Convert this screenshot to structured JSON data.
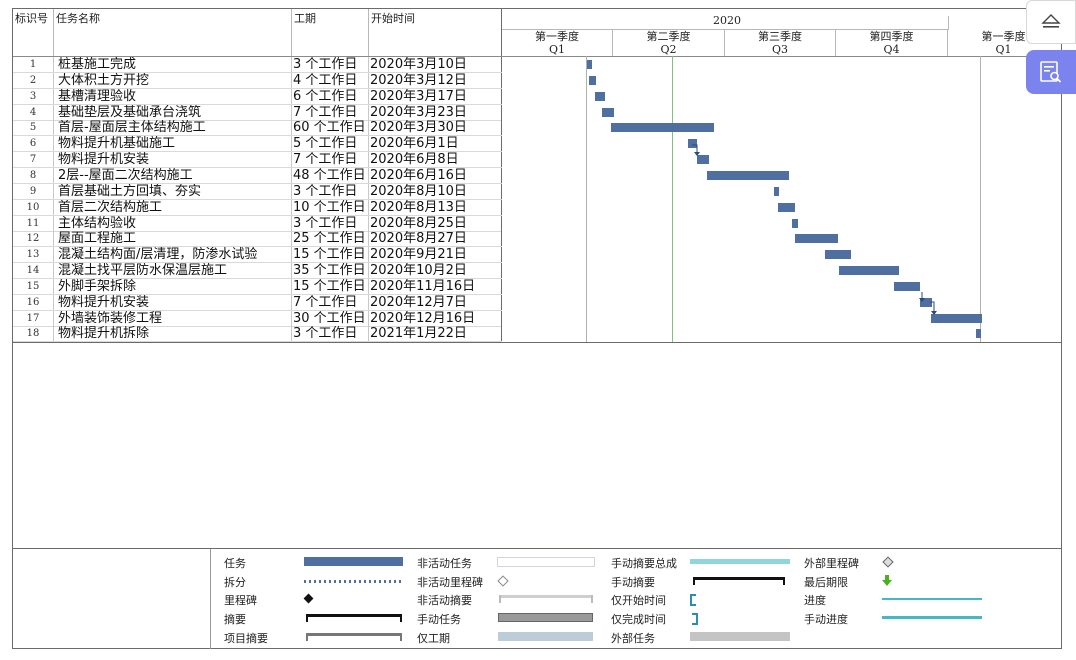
{
  "header": {
    "col_id": "标识号",
    "col_name": "任务名称",
    "col_duration": "工期",
    "col_start": "开始时间",
    "year": "2020",
    "quarters": [
      {
        "label": "第一季度",
        "q": "Q1"
      },
      {
        "label": "第二季度",
        "q": "Q2"
      },
      {
        "label": "第三季度",
        "q": "Q3"
      },
      {
        "label": "第四季度",
        "q": "Q4"
      },
      {
        "label": "第一季度",
        "q": "Q1"
      }
    ]
  },
  "tasks": [
    {
      "id": "1",
      "name": "桩基施工完成",
      "duration": "3 个工作日",
      "start": "2020年3月10日"
    },
    {
      "id": "2",
      "name": "大体积土方开挖",
      "duration": "4 个工作日",
      "start": "2020年3月12日"
    },
    {
      "id": "3",
      "name": "基槽清理验收",
      "duration": "6 个工作日",
      "start": "2020年3月17日"
    },
    {
      "id": "4",
      "name": "基础垫层及基础承台浇筑",
      "duration": "7 个工作日",
      "start": "2020年3月23日"
    },
    {
      "id": "5",
      "name": "首层-屋面层主体结构施工",
      "duration": "60 个工作日",
      "start": "2020年3月30日"
    },
    {
      "id": "6",
      "name": "物料提升机基础施工",
      "duration": "5 个工作日",
      "start": "2020年6月1日"
    },
    {
      "id": "7",
      "name": "物料提升机安装",
      "duration": "7 个工作日",
      "start": "2020年6月8日"
    },
    {
      "id": "8",
      "name": "2层--屋面二次结构施工",
      "duration": "48 个工作日",
      "start": "2020年6月16日"
    },
    {
      "id": "9",
      "name": "首层基础土方回填、夯实",
      "duration": "3 个工作日",
      "start": "2020年8月10日"
    },
    {
      "id": "10",
      "name": "首层二次结构施工",
      "duration": "10 个工作日",
      "start": "2020年8月13日"
    },
    {
      "id": "11",
      "name": "主体结构验收",
      "duration": "3 个工作日",
      "start": "2020年8月25日"
    },
    {
      "id": "12",
      "name": "屋面工程施工",
      "duration": "25 个工作日",
      "start": "2020年8月27日"
    },
    {
      "id": "13",
      "name": "混凝土结构面/层清理，防渗水试验",
      "duration": "15 个工作日",
      "start": "2020年9月21日"
    },
    {
      "id": "14",
      "name": "混凝土找平层防水保温层施工",
      "duration": "35 个工作日",
      "start": "2020年10月2日"
    },
    {
      "id": "15",
      "name": "外脚手架拆除",
      "duration": "15 个工作日",
      "start": "2020年11月16日"
    },
    {
      "id": "16",
      "name": "物料提升机安装",
      "duration": "7 个工作日",
      "start": "2020年12月7日"
    },
    {
      "id": "17",
      "name": "外墙装饰装修工程",
      "duration": "30 个工作日",
      "start": "2020年12月16日"
    },
    {
      "id": "18",
      "name": "物料提升机拆除",
      "duration": "3 个工作日",
      "start": "2021年1月22日"
    }
  ],
  "legend": {
    "task": "任务",
    "split": "拆分",
    "milestone": "里程碑",
    "summary": "摘要",
    "project_summary": "项目摘要",
    "inactive_task": "非活动任务",
    "inactive_milestone": "非活动里程碑",
    "inactive_summary": "非活动摘要",
    "manual_task": "手动任务",
    "duration_only": "仅工期",
    "manual_summary_rollup": "手动摘要总成",
    "manual_summary": "手动摘要",
    "start_only": "仅开始时间",
    "finish_only": "仅完成时间",
    "external_tasks": "外部任务",
    "external_milestone": "外部里程碑",
    "deadline": "最后期限",
    "progress": "进度",
    "manual_progress": "手动进度"
  },
  "colors": {
    "task_bar": "#4f6fa0",
    "today_line": "#7fbf7f",
    "manual_rollup": "#8ed6dc",
    "progress": "#45b8c8",
    "deadline": "#4caf1f",
    "side_button": "#7b84ee"
  },
  "side_buttons": {
    "top_icon": "eject-icon",
    "bottom_icon": "document-search-icon"
  }
}
